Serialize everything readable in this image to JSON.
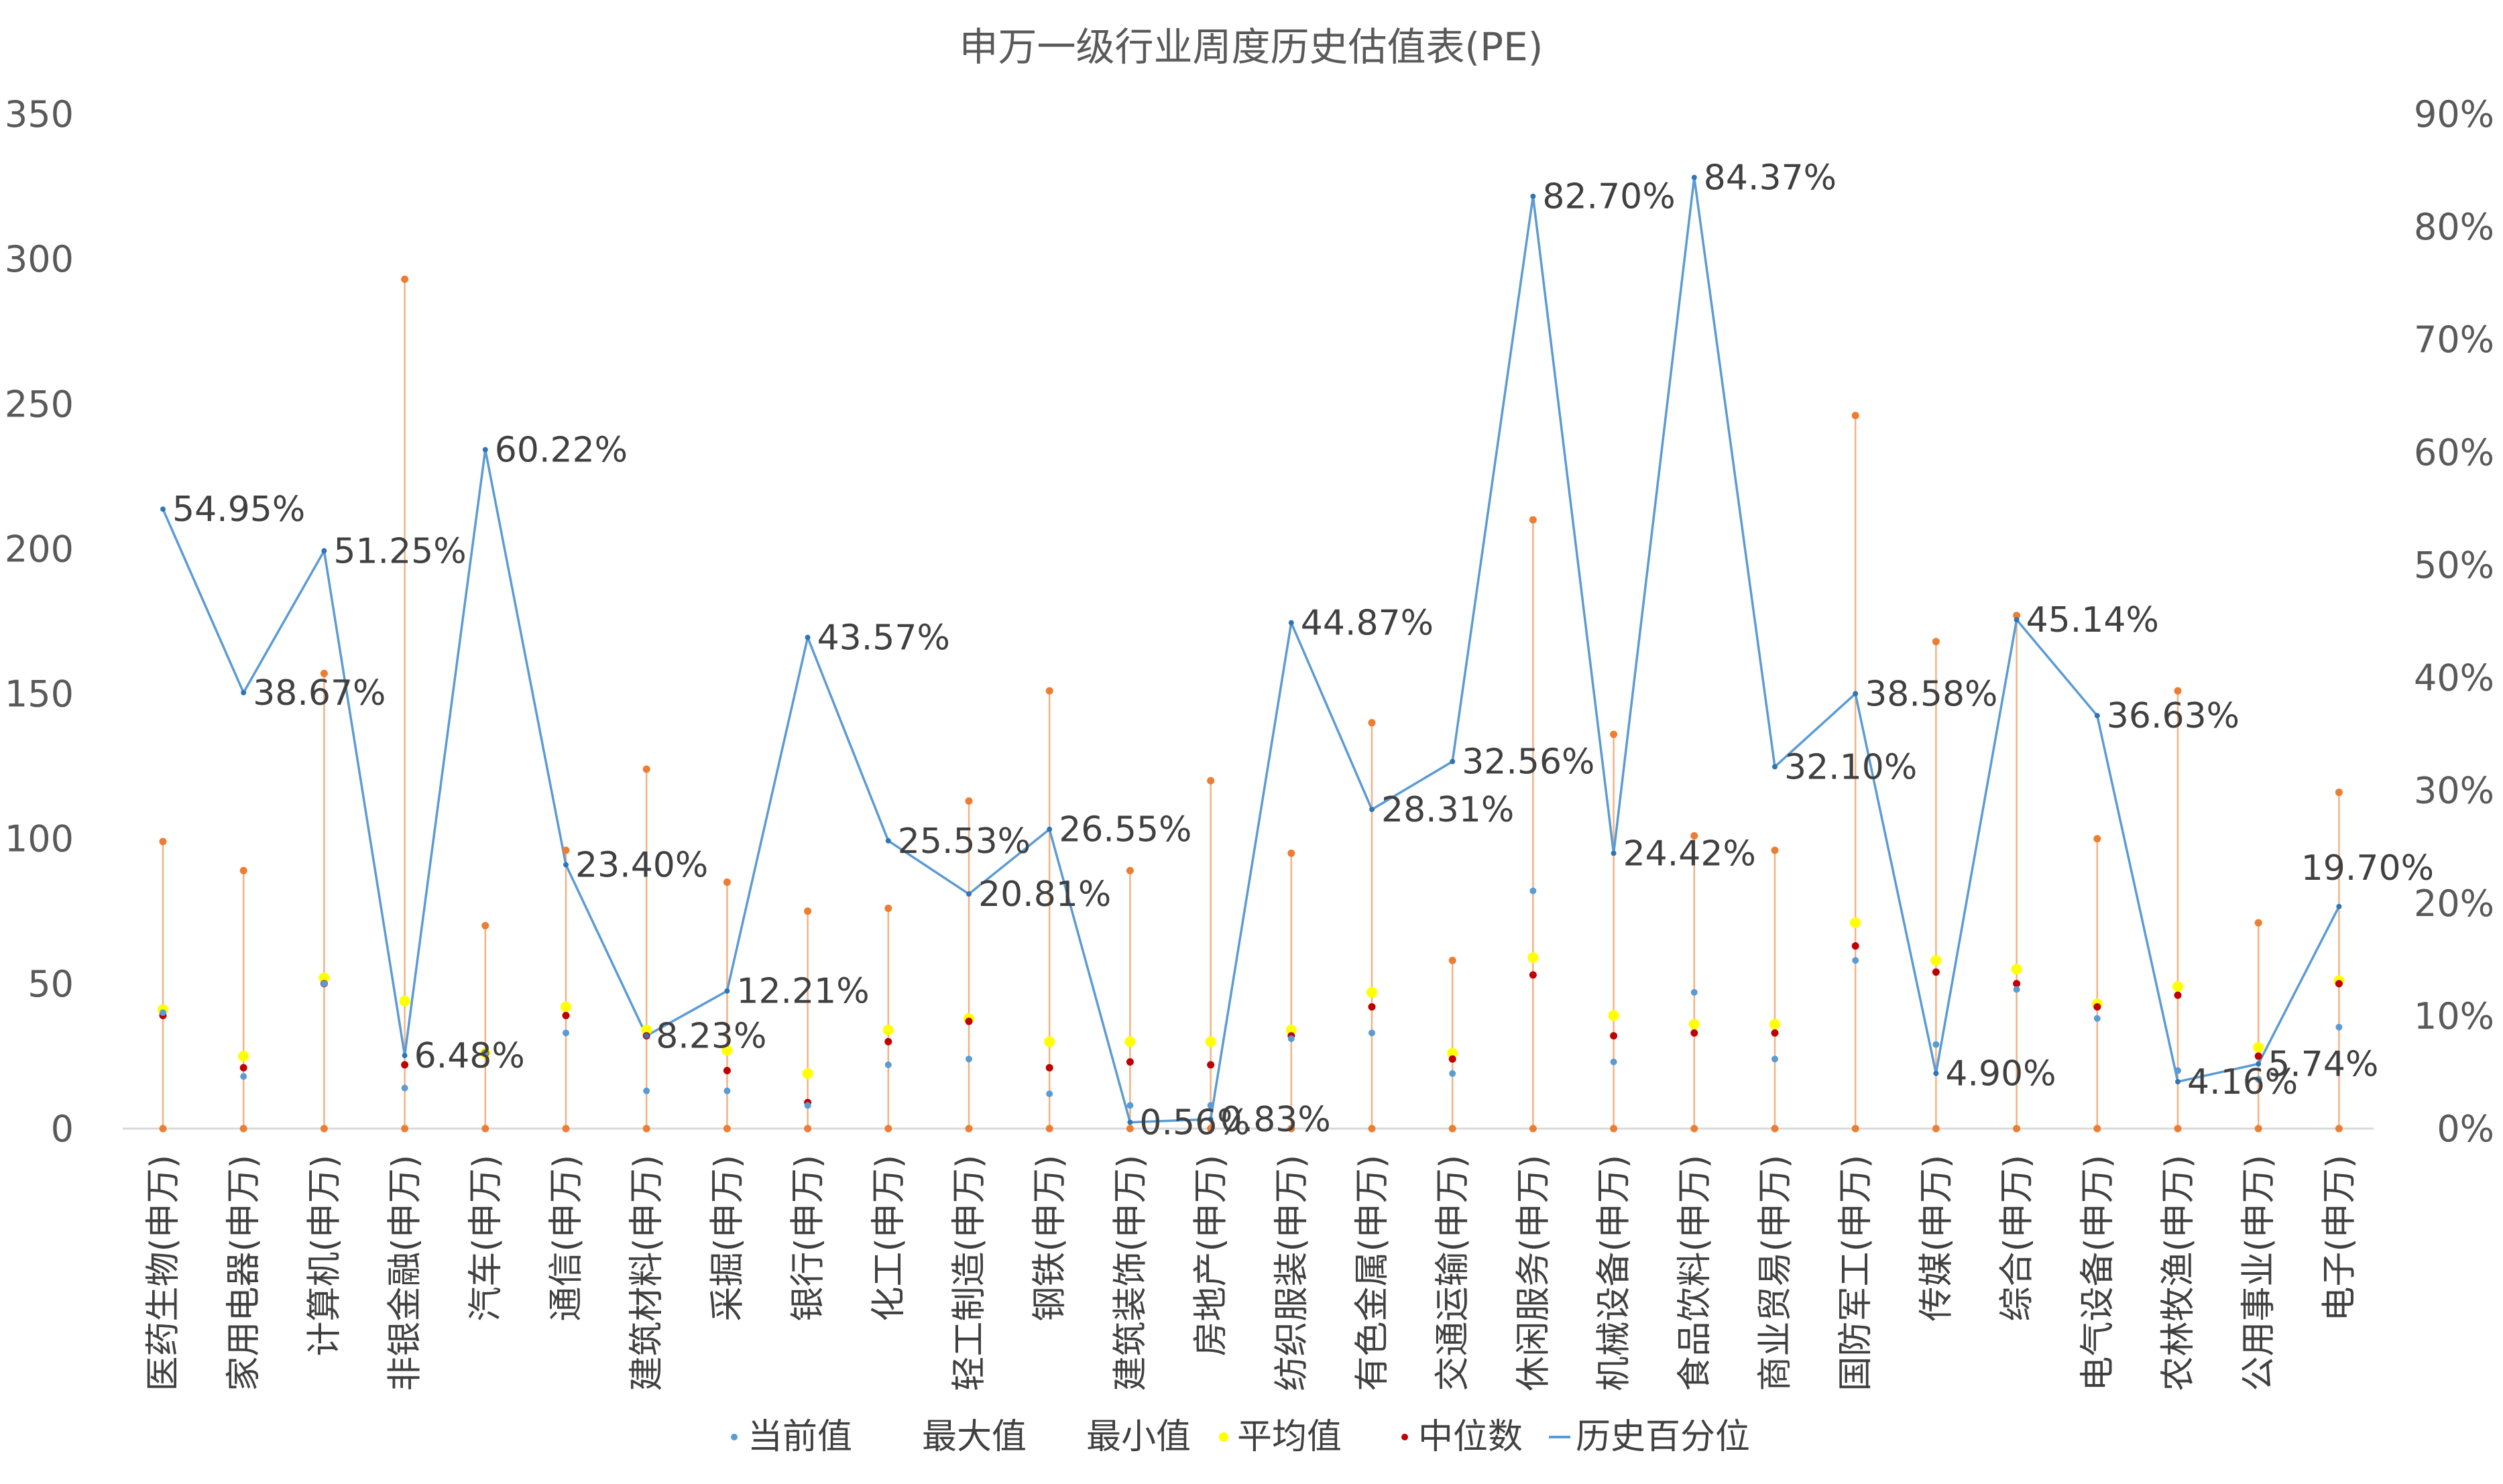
{
  "chart_data": {
    "type": "line",
    "title": "申万一级行业周度历史估值表(PE)",
    "y_left": {
      "ticks": [
        "0",
        "50",
        "100",
        "150",
        "200",
        "250",
        "300",
        "350"
      ],
      "range": [
        0,
        350
      ]
    },
    "y_right": {
      "ticks": [
        "0%",
        "10%",
        "20%",
        "30%",
        "40%",
        "50%",
        "60%",
        "70%",
        "80%",
        "90%"
      ],
      "range": [
        0,
        90
      ]
    },
    "categories": [
      "医药生物(申万)",
      "家用电器(申万)",
      "计算机(申万)",
      "非银金融(申万)",
      "汽车(申万)",
      "通信(申万)",
      "建筑材料(申万)",
      "采掘(申万)",
      "银行(申万)",
      "化工(申万)",
      "轻工制造(申万)",
      "钢铁(申万)",
      "建筑装饰(申万)",
      "房地产(申万)",
      "纺织服装(申万)",
      "有色金属(申万)",
      "交通运输(申万)",
      "休闲服务(申万)",
      "机械设备(申万)",
      "食品饮料(申万)",
      "商业贸易(申万)",
      "国防军工(申万)",
      "传媒(申万)",
      "综合(申万)",
      "电气设备(申万)",
      "农林牧渔(申万)",
      "公用事业(申万)",
      "电子(申万)"
    ],
    "series": [
      {
        "name": "当前值",
        "axis": "left",
        "color": "#5b9bd5",
        "values": [
          40,
          18,
          50,
          14,
          26,
          33,
          13,
          13,
          8,
          22,
          24,
          12,
          8,
          8,
          31,
          33,
          19,
          82,
          23,
          47,
          24,
          58,
          29,
          48,
          38,
          20,
          17,
          35
        ]
      },
      {
        "name": "最大值",
        "axis": "left",
        "color": "#ed7d31",
        "values": [
          99,
          89,
          157,
          293,
          70,
          96,
          124,
          85,
          75,
          76,
          113,
          151,
          89,
          120,
          95,
          140,
          58,
          210,
          136,
          101,
          96,
          246,
          168,
          177,
          100,
          151,
          71,
          116
        ]
      },
      {
        "name": "最小值",
        "axis": "left",
        "color": "#ed7d31",
        "values": [
          0,
          0,
          0,
          0,
          0,
          0,
          0,
          0,
          0,
          0,
          0,
          0,
          0,
          0,
          0,
          0,
          0,
          0,
          0,
          0,
          0,
          0,
          0,
          0,
          0,
          0,
          0,
          0
        ]
      },
      {
        "name": "平均值",
        "axis": "left",
        "color": "#ffff00",
        "values": [
          41,
          25,
          52,
          44,
          26,
          42,
          34,
          27,
          19,
          34,
          38,
          30,
          30,
          30,
          34,
          47,
          26,
          59,
          39,
          36,
          36,
          71,
          58,
          55,
          43,
          49,
          28,
          51
        ]
      },
      {
        "name": "中位数",
        "axis": "left",
        "color": "#c00000",
        "values": [
          39,
          21,
          50,
          22,
          26,
          39,
          32,
          20,
          9,
          30,
          37,
          21,
          23,
          22,
          32,
          42,
          24,
          53,
          32,
          33,
          33,
          63,
          54,
          50,
          42,
          46,
          25,
          50
        ]
      },
      {
        "name": "历史百分位",
        "axis": "right",
        "color": "#5b9bd5",
        "values": [
          54.95,
          38.67,
          51.25,
          6.48,
          60.22,
          23.4,
          8.23,
          12.21,
          43.57,
          25.53,
          20.81,
          26.55,
          0.56,
          0.83,
          44.87,
          28.31,
          32.56,
          82.7,
          24.42,
          84.37,
          32.1,
          38.58,
          4.9,
          45.14,
          36.63,
          4.16,
          5.74,
          19.7
        ]
      }
    ],
    "percent_labels": [
      "54.95%",
      "38.67%",
      "51.25%",
      "6.48%",
      "60.22%",
      "23.40%",
      "8.23%",
      "12.21%",
      "43.57%",
      "25.53%",
      "20.81%",
      "26.55%",
      "0.56%",
      "0.83%",
      "44.87%",
      "28.31%",
      "32.56%",
      "82.70%",
      "24.42%",
      "84.37%",
      "32.10%",
      "38.58%",
      "4.90%",
      "45.14%",
      "36.63%",
      "4.16%",
      "5.74%",
      "19.70%"
    ],
    "legend": [
      "当前值",
      "最大值",
      "最小值",
      "平均值",
      "中位数",
      "历史百分位"
    ],
    "legend_position": "bottom",
    "grid": false
  }
}
